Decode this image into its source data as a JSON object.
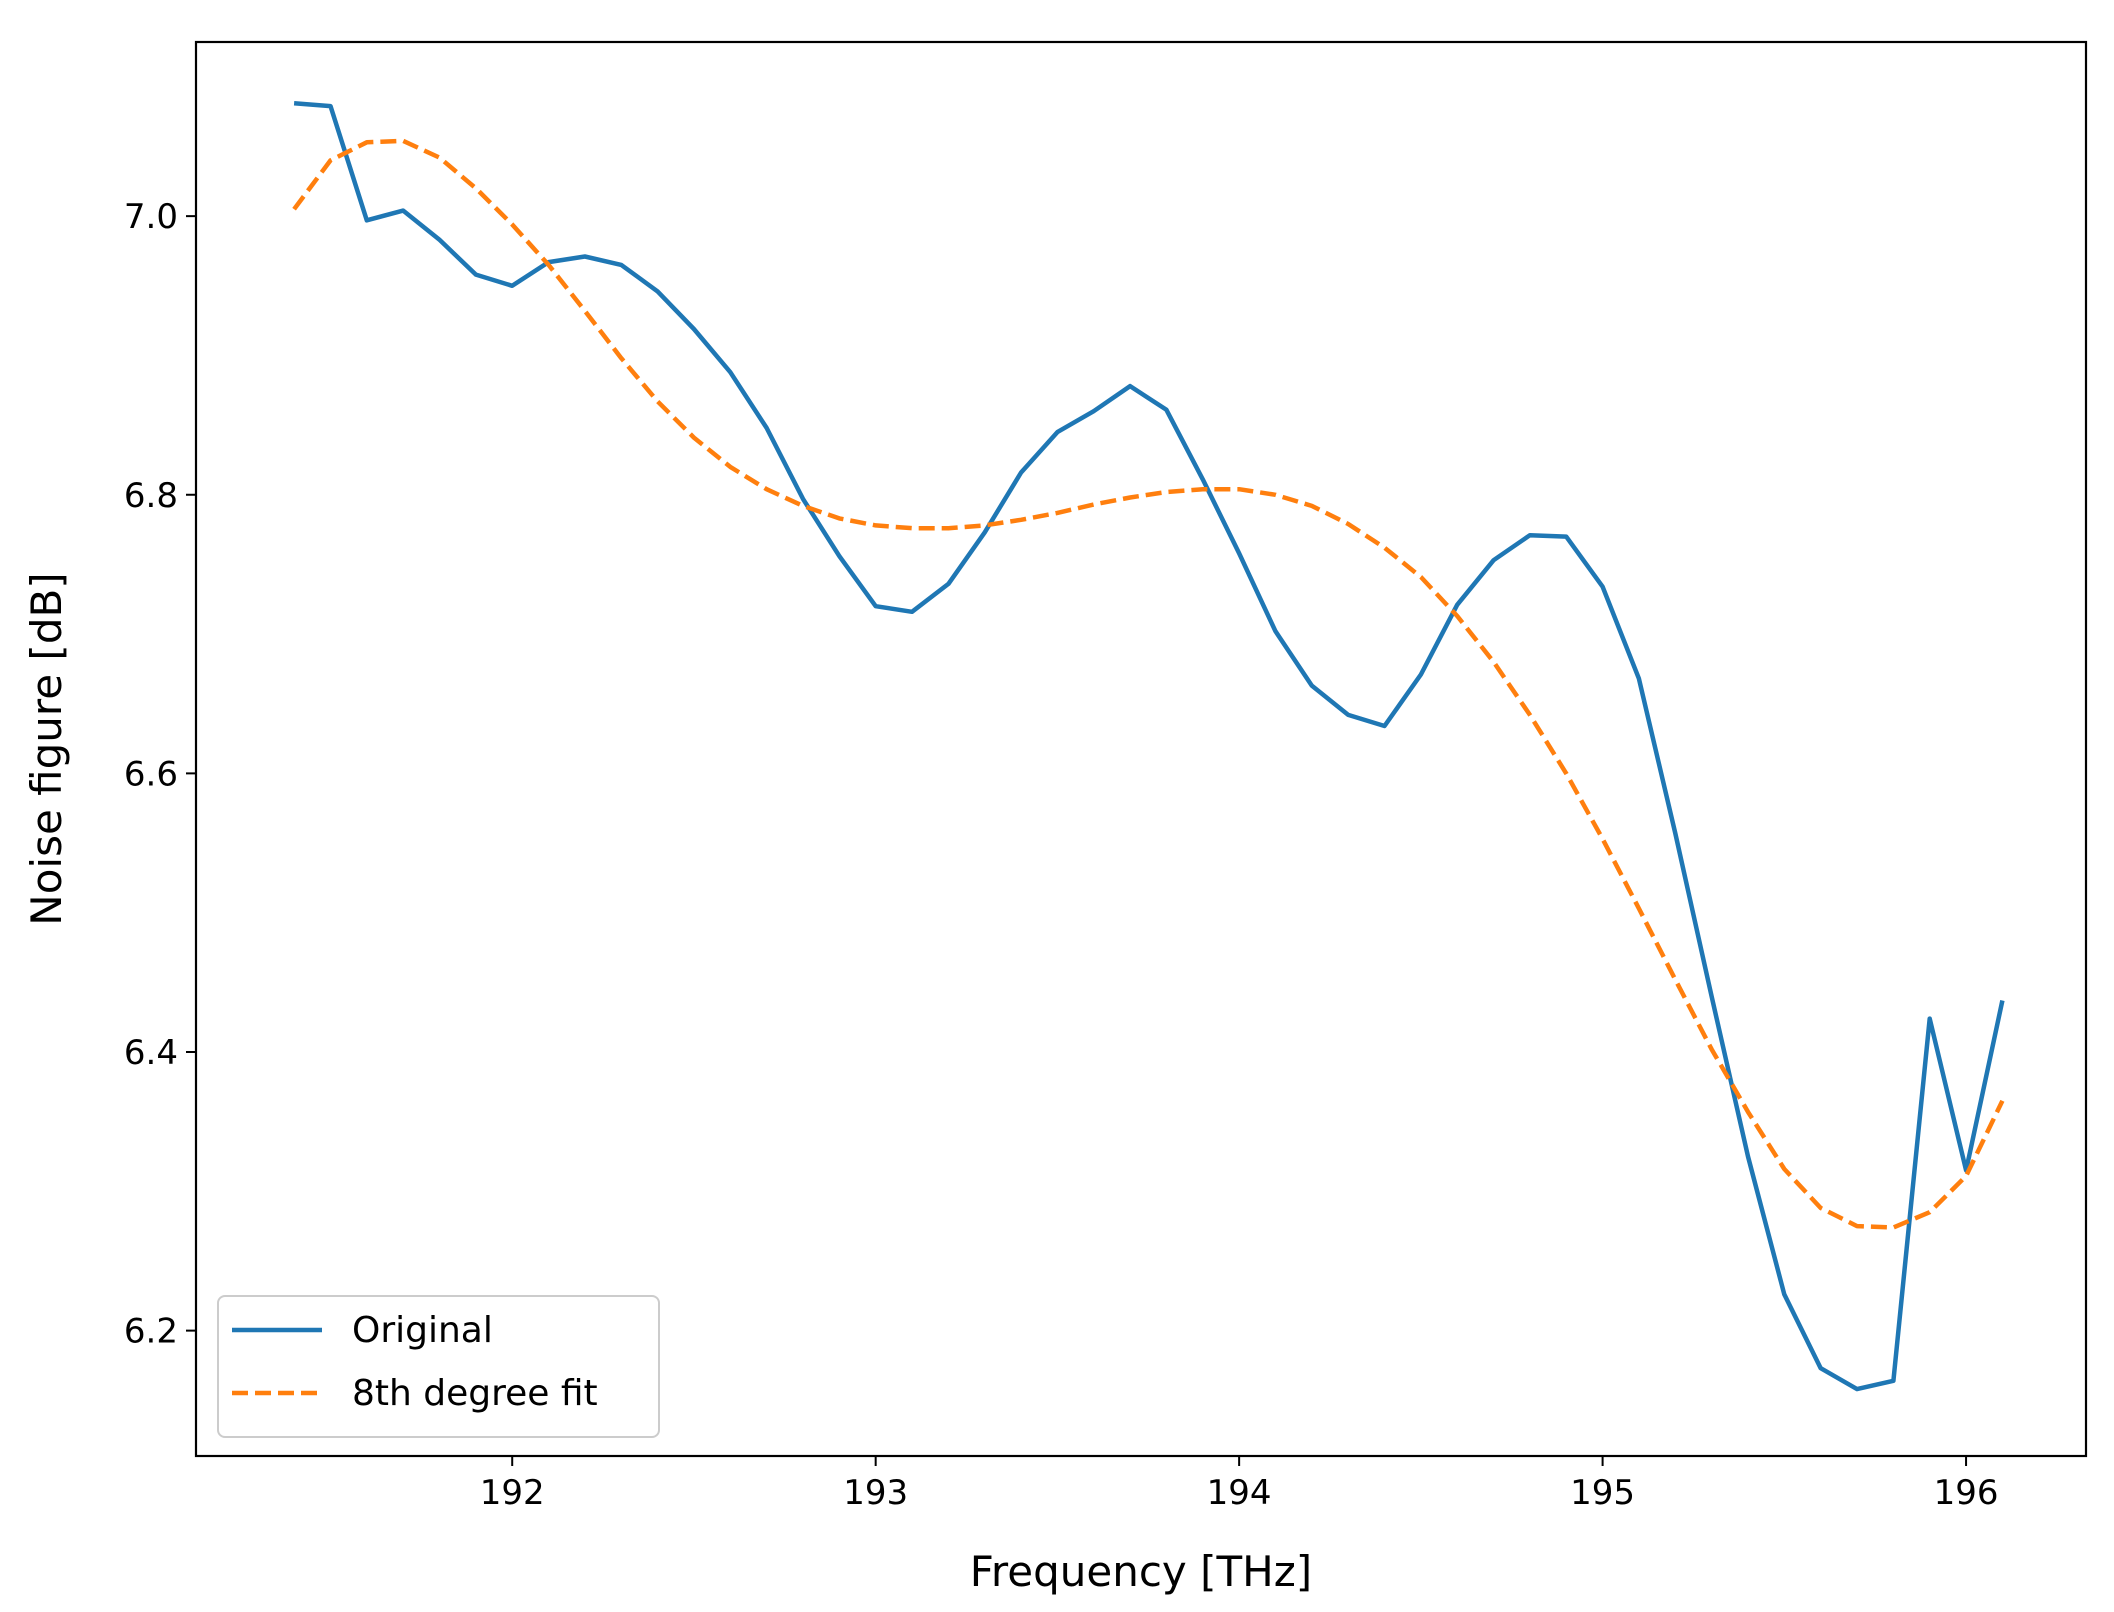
{
  "chart_data": {
    "type": "line",
    "title": "",
    "xlabel": "Frequency [THz]",
    "ylabel": "Noise figure [dB]",
    "xlim": [
      191.13,
      196.33
    ],
    "ylim": [
      6.11,
      7.125
    ],
    "xticks": [
      192,
      193,
      194,
      195,
      196
    ],
    "yticks": [
      6.2,
      6.4,
      6.6,
      6.8,
      7.0
    ],
    "xtick_labels": [
      "192",
      "193",
      "194",
      "195",
      "196"
    ],
    "ytick_labels": [
      "6.2",
      "6.4",
      "6.6",
      "6.8",
      "7.0"
    ],
    "grid": false,
    "legend_position": "lower-left",
    "series": [
      {
        "name": "Original",
        "style": "solid",
        "color": "#1f77b4",
        "x": [
          191.4,
          191.5,
          191.6,
          191.7,
          191.8,
          191.9,
          192.0,
          192.1,
          192.2,
          192.3,
          192.4,
          192.5,
          192.6,
          192.7,
          192.8,
          192.9,
          193.0,
          193.1,
          193.2,
          193.3,
          193.4,
          193.5,
          193.6,
          193.7,
          193.8,
          193.9,
          194.0,
          194.1,
          194.2,
          194.3,
          194.4,
          194.5,
          194.6,
          194.7,
          194.8,
          194.9,
          195.0,
          195.1,
          195.2,
          195.3,
          195.4,
          195.5,
          195.6,
          195.7,
          195.8,
          195.9,
          196.0,
          196.1
        ],
        "y": [
          7.081,
          7.079,
          6.997,
          7.004,
          6.983,
          6.958,
          6.95,
          6.967,
          6.971,
          6.965,
          6.946,
          6.919,
          6.888,
          6.848,
          6.797,
          6.756,
          6.72,
          6.716,
          6.736,
          6.773,
          6.816,
          6.845,
          6.86,
          6.878,
          6.861,
          6.811,
          6.758,
          6.702,
          6.663,
          6.642,
          6.634,
          6.671,
          6.721,
          6.753,
          6.771,
          6.77,
          6.734,
          6.668,
          6.557,
          6.44,
          6.325,
          6.226,
          6.173,
          6.158,
          6.164,
          6.424,
          6.315,
          6.437
        ]
      },
      {
        "name": "8th degree fit",
        "style": "dashed",
        "color": "#ff7f0e",
        "x": [
          191.4,
          191.5,
          191.6,
          191.7,
          191.8,
          191.9,
          192.0,
          192.1,
          192.2,
          192.3,
          192.4,
          192.5,
          192.6,
          192.7,
          192.8,
          192.9,
          193.0,
          193.1,
          193.2,
          193.3,
          193.4,
          193.5,
          193.6,
          193.7,
          193.8,
          193.9,
          194.0,
          194.1,
          194.2,
          194.3,
          194.4,
          194.5,
          194.6,
          194.7,
          194.8,
          194.9,
          195.0,
          195.1,
          195.2,
          195.3,
          195.4,
          195.5,
          195.6,
          195.7,
          195.8,
          195.9,
          196.0,
          196.1
        ],
        "y": [
          7.005,
          7.04,
          7.053,
          7.054,
          7.042,
          7.02,
          6.994,
          6.965,
          6.932,
          6.898,
          6.867,
          6.841,
          6.82,
          6.804,
          6.792,
          6.783,
          6.778,
          6.776,
          6.776,
          6.778,
          6.782,
          6.787,
          6.793,
          6.798,
          6.802,
          6.804,
          6.804,
          6.8,
          6.792,
          6.779,
          6.762,
          6.741,
          6.713,
          6.68,
          6.642,
          6.6,
          6.553,
          6.503,
          6.452,
          6.402,
          6.357,
          6.316,
          6.288,
          6.275,
          6.274,
          6.285,
          6.311,
          6.365
        ]
      }
    ]
  }
}
